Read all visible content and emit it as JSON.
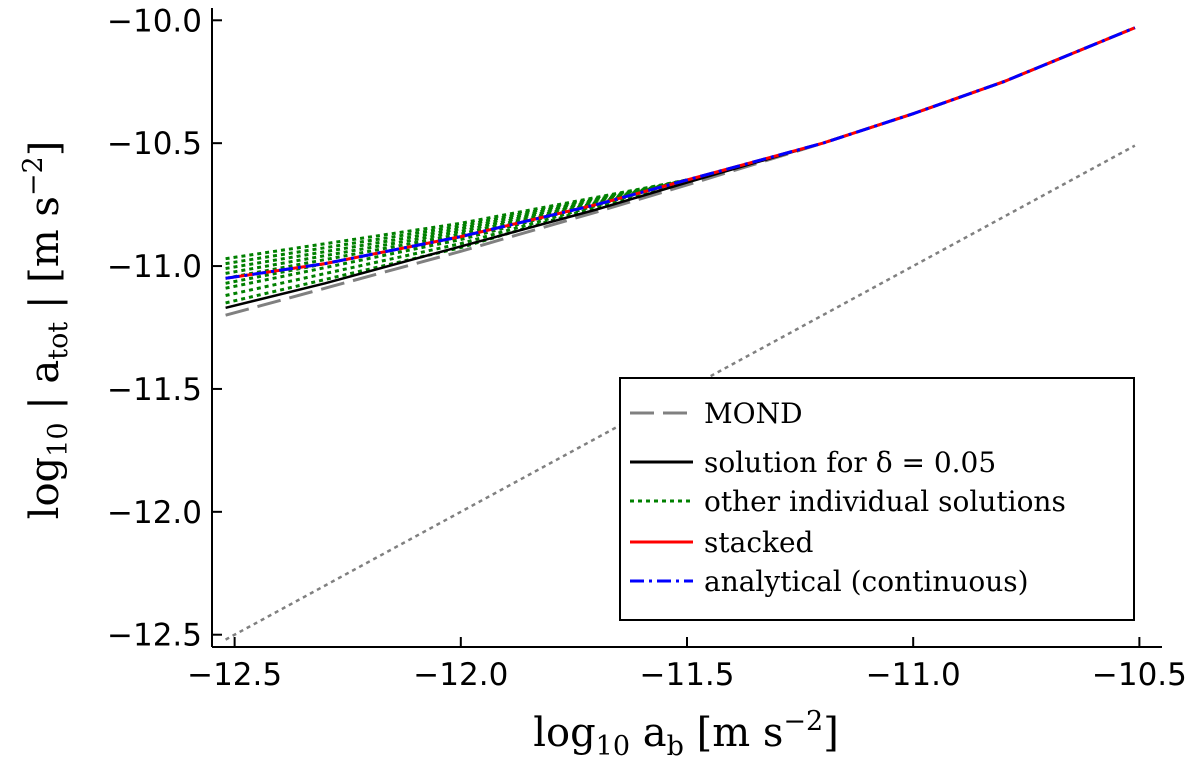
{
  "chart_data": {
    "type": "line",
    "xlabel": "log10 a_b [m s^-2]",
    "ylabel": "log10 | a_tot | [m s^-2]",
    "xlim": [
      -12.55,
      -10.45
    ],
    "ylim": [
      -12.55,
      -9.95
    ],
    "x_ticks": [
      -12.5,
      -12.0,
      -11.5,
      -11.0,
      -10.5
    ],
    "y_ticks": [
      -12.5,
      -12.0,
      -11.5,
      -11.0,
      -10.5,
      -10.0
    ],
    "x_tick_labels": [
      "−12.5",
      "−12.0",
      "−11.5",
      "−11.0",
      "−10.5"
    ],
    "y_tick_labels": [
      "−12.5",
      "−12.0",
      "−11.5",
      "−11.0",
      "−10.5",
      "−10.0"
    ],
    "grid": false,
    "legend_position": "bottom-right",
    "series": [
      {
        "name": "MOND",
        "color": "#808080",
        "style": "dashed",
        "points": [
          [
            -12.52,
            -11.2
          ],
          [
            -12.3,
            -11.09
          ],
          [
            -12.0,
            -10.94
          ],
          [
            -11.7,
            -10.78
          ],
          [
            -11.5,
            -10.67
          ],
          [
            -11.2,
            -10.5
          ],
          [
            -11.0,
            -10.38
          ],
          [
            -10.8,
            -10.25
          ],
          [
            -10.51,
            -10.03
          ]
        ]
      },
      {
        "name": "solution for δ = 0.05",
        "color": "#000000",
        "style": "solid",
        "points": [
          [
            -12.52,
            -11.17
          ],
          [
            -12.3,
            -11.07
          ],
          [
            -12.0,
            -10.92
          ],
          [
            -11.7,
            -10.77
          ],
          [
            -11.5,
            -10.66
          ],
          [
            -11.2,
            -10.5
          ],
          [
            -11.0,
            -10.38
          ],
          [
            -10.8,
            -10.25
          ],
          [
            -10.51,
            -10.03
          ]
        ]
      },
      {
        "name": "other individual solutions",
        "color": "#008000",
        "style": "dotted",
        "left_values": [
          -11.15,
          -11.12,
          -11.09,
          -11.07,
          -11.05,
          -11.03,
          -11.01,
          -10.99,
          -10.97
        ],
        "join_x": -11.5,
        "join_y": -10.65
      },
      {
        "name": "stacked",
        "color": "#ff0000",
        "style": "solid",
        "points": [
          [
            -12.52,
            -11.05
          ],
          [
            -12.3,
            -10.99
          ],
          [
            -12.0,
            -10.88
          ],
          [
            -11.7,
            -10.75
          ],
          [
            -11.5,
            -10.65
          ],
          [
            -11.2,
            -10.5
          ],
          [
            -11.0,
            -10.38
          ],
          [
            -10.8,
            -10.25
          ],
          [
            -10.51,
            -10.03
          ]
        ]
      },
      {
        "name": "analytical (continuous)",
        "color": "#0000ff",
        "style": "dashdot",
        "points": [
          [
            -12.52,
            -11.05
          ],
          [
            -12.3,
            -10.99
          ],
          [
            -12.0,
            -10.88
          ],
          [
            -11.7,
            -10.75
          ],
          [
            -11.5,
            -10.65
          ],
          [
            -11.2,
            -10.5
          ],
          [
            -11.0,
            -10.38
          ],
          [
            -10.8,
            -10.25
          ],
          [
            -10.51,
            -10.03
          ]
        ]
      },
      {
        "color": "#808080",
        "style": "dotted",
        "points": [
          [
            -12.52,
            -12.52
          ],
          [
            -10.51,
            -10.51
          ]
        ]
      }
    ]
  },
  "legend": {
    "items": [
      {
        "label": "MOND",
        "color": "#808080",
        "style": "dashed"
      },
      {
        "label": "solution for δ = 0.05",
        "color": "#000000",
        "style": "solid"
      },
      {
        "label": "other individual solutions",
        "color": "#008000",
        "style": "dotted"
      },
      {
        "label": "stacked",
        "color": "#ff0000",
        "style": "solid"
      },
      {
        "label": "analytical (continuous)",
        "color": "#0000ff",
        "style": "dashdot"
      }
    ]
  }
}
